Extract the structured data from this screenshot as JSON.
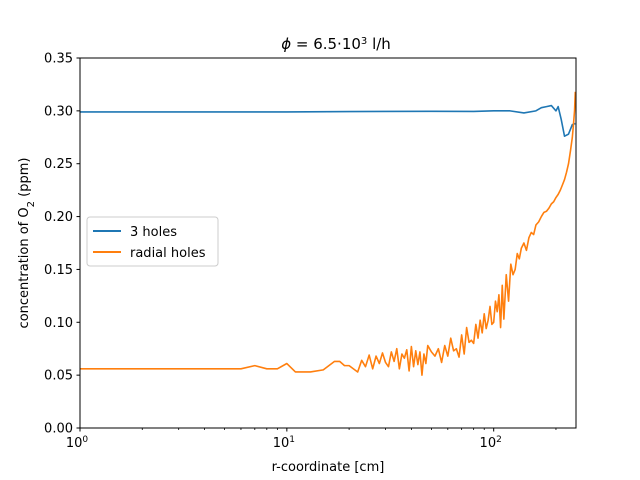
{
  "chart_data": {
    "type": "line",
    "title": {
      "symbol": "ϕ",
      "text": " = 6.5·10",
      "exp": "3",
      "unit": " l/h"
    },
    "xlabel": "r-coordinate [cm]",
    "ylabel": {
      "pre": "concentration of O",
      "sub": "2",
      "post": " (ppm)"
    },
    "xscale": "log",
    "xlim": [
      1,
      250
    ],
    "ylim": [
      0,
      0.35
    ],
    "xticks": [
      {
        "value": 1,
        "base": "10",
        "exp": "0"
      },
      {
        "value": 10,
        "base": "10",
        "exp": "1"
      },
      {
        "value": 100,
        "base": "10",
        "exp": "2"
      }
    ],
    "yticks": [
      "0.00",
      "0.05",
      "0.10",
      "0.15",
      "0.20",
      "0.25",
      "0.30",
      "0.35"
    ],
    "legend_position": "center-left",
    "series": [
      {
        "name": "3 holes",
        "color": "#1f77b4",
        "x": [
          1,
          2,
          5,
          10,
          20,
          50,
          80,
          100,
          120,
          140,
          160,
          170,
          180,
          190,
          200,
          205,
          212,
          220,
          230,
          240,
          248
        ],
        "y": [
          0.299,
          0.299,
          0.299,
          0.299,
          0.2993,
          0.2996,
          0.2995,
          0.3,
          0.3,
          0.298,
          0.3,
          0.303,
          0.304,
          0.305,
          0.3,
          0.304,
          0.292,
          0.276,
          0.278,
          0.287,
          0.288
        ]
      },
      {
        "name": "radial holes",
        "color": "#ff7f0e",
        "x": [
          1,
          6,
          7,
          8,
          9,
          10,
          11,
          13,
          15,
          17,
          18,
          19,
          20,
          22,
          23,
          24,
          25,
          26,
          27,
          28,
          29,
          30,
          31,
          32,
          33,
          34,
          35,
          36,
          37,
          38,
          39,
          40,
          41,
          42,
          43,
          44,
          45,
          46,
          47,
          48,
          50,
          52,
          54,
          56,
          58,
          60,
          62,
          64,
          66,
          68,
          70,
          72,
          74,
          76,
          78,
          80,
          82,
          84,
          86,
          88,
          90,
          92,
          94,
          96,
          98,
          100,
          102,
          104,
          106,
          108,
          110,
          112,
          115,
          118,
          121,
          124,
          127,
          130,
          133,
          136,
          140,
          144,
          148,
          152,
          156,
          160,
          165,
          170,
          175,
          180,
          185,
          190,
          195,
          200,
          205,
          210,
          215,
          220,
          225,
          230,
          235,
          240,
          243,
          246,
          248
        ],
        "y": [
          0.056,
          0.056,
          0.059,
          0.056,
          0.056,
          0.061,
          0.053,
          0.053,
          0.055,
          0.063,
          0.063,
          0.059,
          0.059,
          0.053,
          0.064,
          0.058,
          0.069,
          0.056,
          0.068,
          0.061,
          0.071,
          0.062,
          0.058,
          0.072,
          0.063,
          0.075,
          0.056,
          0.07,
          0.066,
          0.074,
          0.054,
          0.077,
          0.058,
          0.073,
          0.06,
          0.072,
          0.05,
          0.07,
          0.061,
          0.078,
          0.072,
          0.068,
          0.075,
          0.062,
          0.078,
          0.068,
          0.085,
          0.073,
          0.075,
          0.067,
          0.088,
          0.07,
          0.095,
          0.081,
          0.083,
          0.08,
          0.098,
          0.085,
          0.102,
          0.09,
          0.108,
          0.094,
          0.102,
          0.115,
          0.098,
          0.1,
          0.12,
          0.11,
          0.126,
          0.095,
          0.135,
          0.103,
          0.145,
          0.12,
          0.155,
          0.145,
          0.15,
          0.165,
          0.16,
          0.17,
          0.175,
          0.168,
          0.18,
          0.185,
          0.183,
          0.192,
          0.195,
          0.2,
          0.204,
          0.205,
          0.208,
          0.212,
          0.214,
          0.218,
          0.221,
          0.225,
          0.23,
          0.235,
          0.242,
          0.25,
          0.262,
          0.275,
          0.287,
          0.3,
          0.318
        ]
      }
    ]
  }
}
